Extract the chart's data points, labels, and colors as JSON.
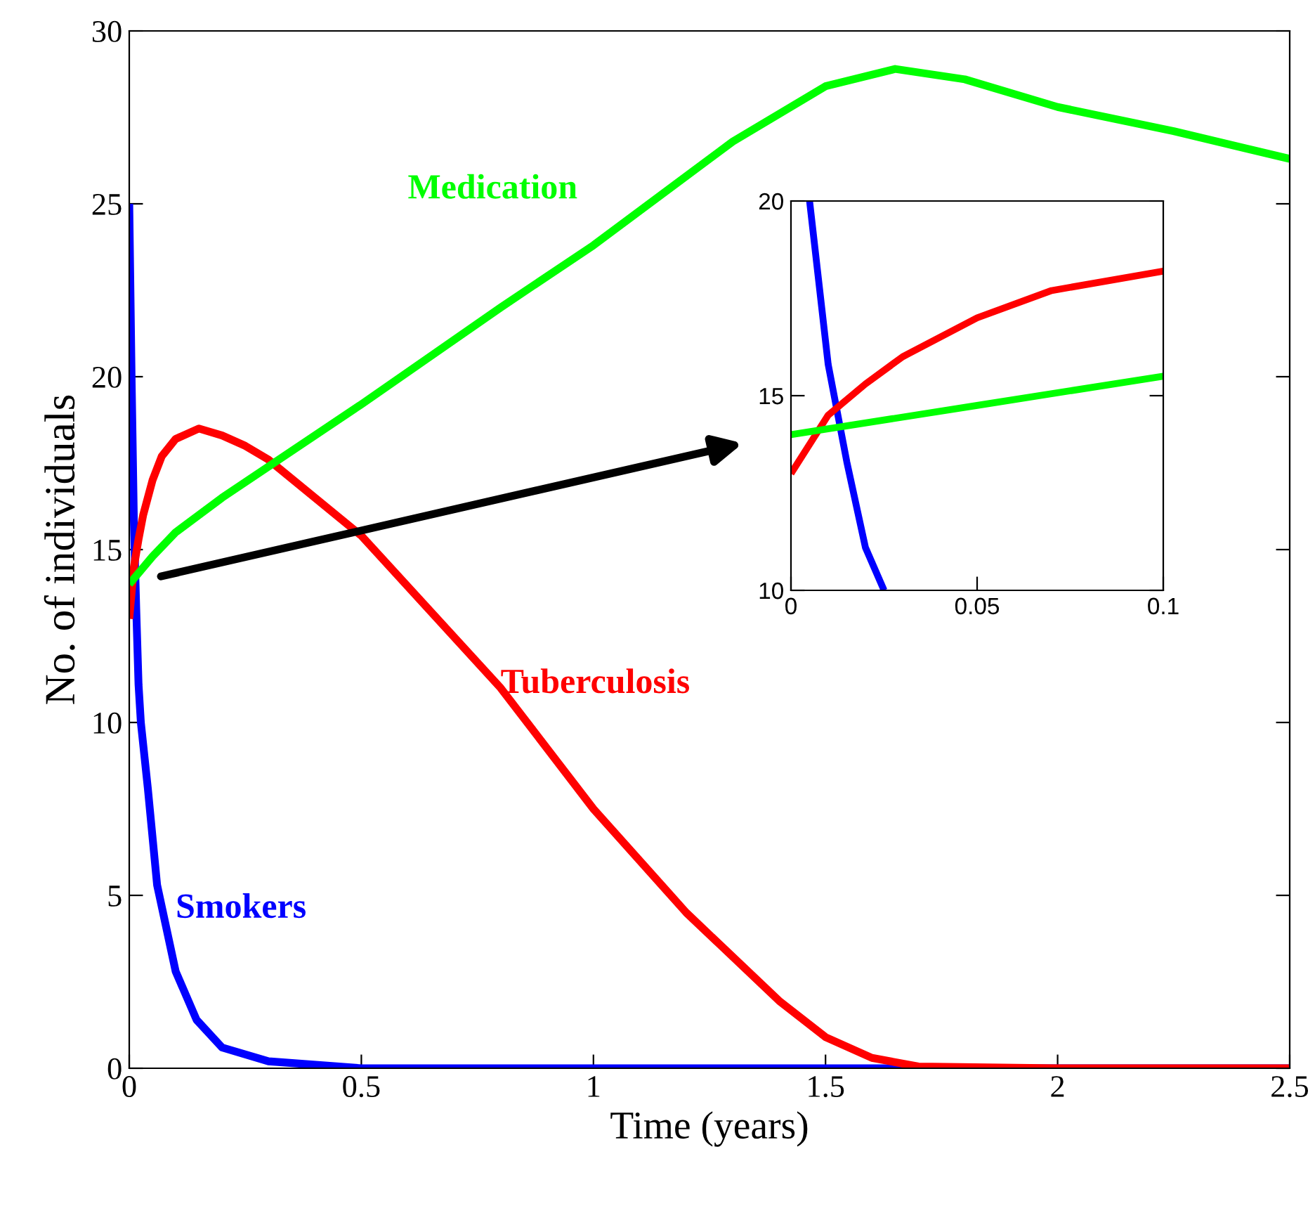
{
  "chart_data": [
    {
      "type": "line",
      "xlabel": "Time (years)",
      "ylabel": "No. of individuals",
      "xlim": [
        0,
        2.5
      ],
      "xticks": [
        0,
        0.5,
        1,
        1.5,
        2,
        2.5
      ],
      "ylim": [
        0,
        30
      ],
      "yticks": [
        0,
        5,
        10,
        15,
        20,
        25,
        30
      ],
      "grid": false,
      "legend": false,
      "series": [
        {
          "name": "Smokers",
          "color": "#0000ff",
          "x": [
            0,
            0.005,
            0.01,
            0.015,
            0.02,
            0.025,
            0.04,
            0.06,
            0.1,
            0.145,
            0.2,
            0.3,
            0.5,
            1,
            2.5
          ],
          "values": [
            25,
            20,
            15.8,
            13.3,
            11.1,
            10,
            8.1,
            5.3,
            2.8,
            1.4,
            0.6,
            0.2,
            0,
            0,
            0
          ]
        },
        {
          "name": "Tuberculosis",
          "color": "#ff0000",
          "x": [
            0,
            0.01,
            0.02,
            0.03,
            0.05,
            0.07,
            0.1,
            0.15,
            0.2,
            0.25,
            0.3,
            0.5,
            0.8,
            1.0,
            1.2,
            1.4,
            1.5,
            1.6,
            1.7,
            2.0,
            2.5
          ],
          "values": [
            13,
            14.5,
            15.3,
            16,
            17,
            17.7,
            18.2,
            18.5,
            18.3,
            18.0,
            17.6,
            15.4,
            11,
            7.5,
            4.5,
            1.95,
            0.9,
            0.3,
            0.05,
            0,
            0
          ]
        },
        {
          "name": "Medication",
          "color": "#00ff00",
          "x": [
            0,
            0.05,
            0.1,
            0.2,
            0.5,
            0.8,
            1.0,
            1.3,
            1.5,
            1.65,
            1.8,
            2.0,
            2.25,
            2.5
          ],
          "values": [
            14,
            14.8,
            15.5,
            16.5,
            19.2,
            22,
            23.8,
            26.8,
            28.4,
            28.9,
            28.6,
            27.8,
            27.1,
            26.3
          ]
        }
      ]
    },
    {
      "type": "line",
      "xlim": [
        0,
        0.1
      ],
      "xticks": [
        0,
        0.05,
        0.1
      ],
      "ylim": [
        10,
        20
      ],
      "yticks": [
        10,
        15,
        20
      ],
      "grid": false,
      "legend": false,
      "series": [
        {
          "color": "#0000ff",
          "x": [
            0.005,
            0.01,
            0.015,
            0.02,
            0.025
          ],
          "values": [
            20,
            15.8,
            13.3,
            11.1,
            10
          ]
        },
        {
          "color": "#ff0000",
          "x": [
            0,
            0.01,
            0.02,
            0.03,
            0.05,
            0.07,
            0.1
          ],
          "values": [
            13,
            14.5,
            15.3,
            16,
            17,
            17.7,
            18.2
          ]
        },
        {
          "color": "#00ff00",
          "x": [
            0,
            0.05,
            0.1
          ],
          "values": [
            14,
            14.75,
            15.5
          ]
        }
      ]
    }
  ]
}
